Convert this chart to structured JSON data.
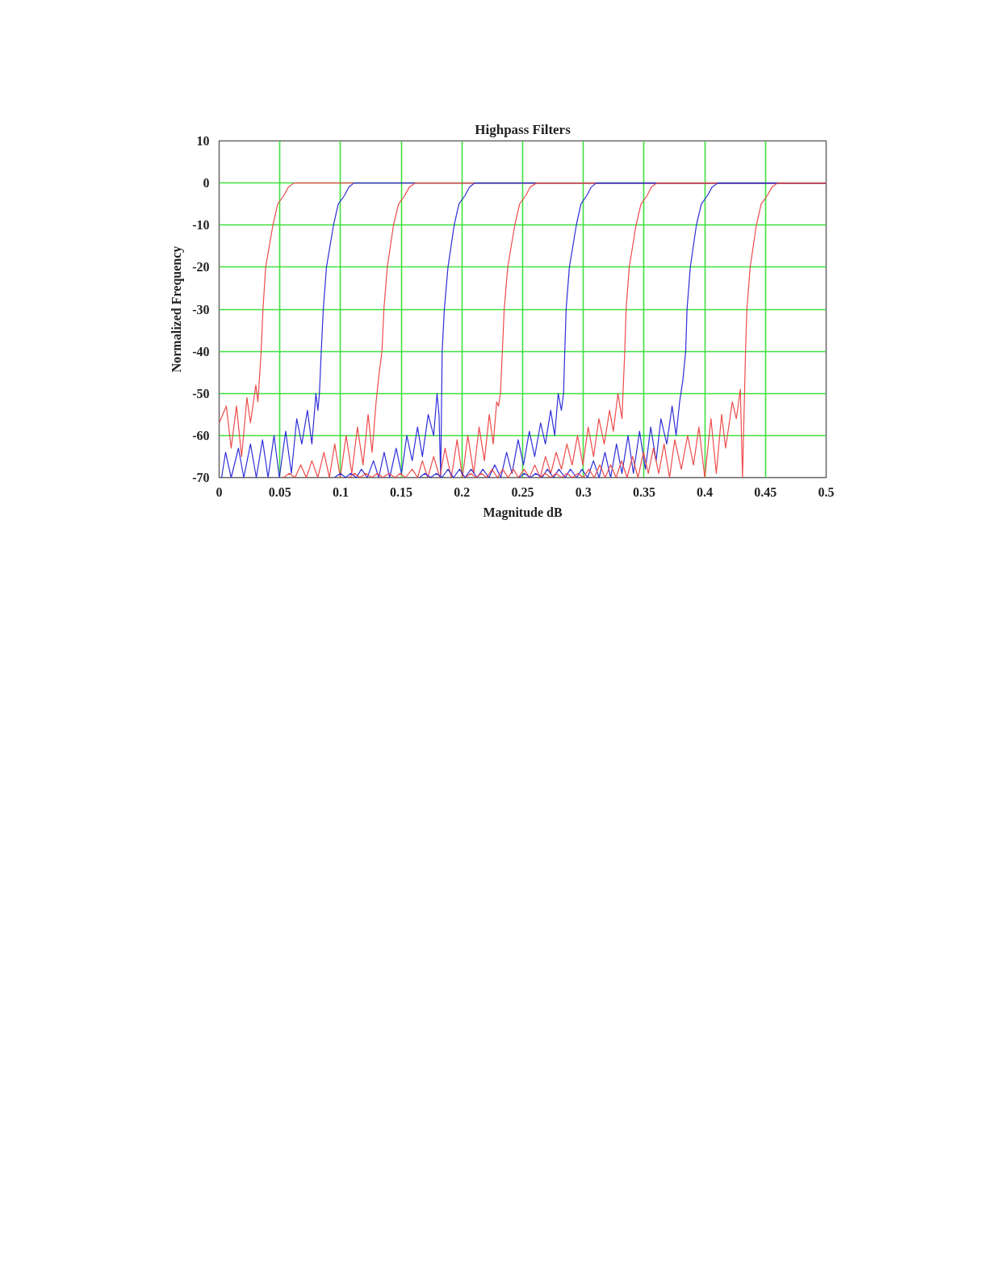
{
  "chart_data": {
    "type": "line",
    "title": "Highpass Filters",
    "xlabel": "Magnitude dB",
    "ylabel": "Normalized Frequency",
    "xlim": [
      0,
      0.5
    ],
    "ylim": [
      -70,
      10
    ],
    "xticks": [
      0,
      0.05,
      0.1,
      0.15,
      0.2,
      0.25,
      0.3,
      0.35,
      0.4,
      0.45,
      0.5
    ],
    "yticks": [
      10,
      0,
      -10,
      -20,
      -30,
      -40,
      -50,
      -60,
      -70
    ],
    "grid": true,
    "series": [
      {
        "color": "#ee4b4b",
        "x": [
          0,
          0.0059,
          0.0099,
          0.0143,
          0.0185,
          0.0229,
          0.0258,
          0.0302,
          0.0319,
          0.0335,
          0.0346,
          0.0361,
          0.0383,
          0.0443,
          0.0482,
          0.0533,
          0.057,
          0.0615,
          0.5
        ],
        "values": [
          -57,
          -53,
          -63,
          -53,
          -65,
          -51,
          -57,
          -48,
          -52,
          -45,
          -40,
          -30,
          -20,
          -10,
          -5,
          -3,
          -1,
          0,
          0
        ]
      },
      {
        "color": "#2e2ed8",
        "x": [
          0.002,
          0.0053,
          0.0099,
          0.0159,
          0.0203,
          0.0258,
          0.0306,
          0.0357,
          0.0403,
          0.0452,
          0.0496,
          0.0548,
          0.0595,
          0.0639,
          0.0681,
          0.0727,
          0.0764,
          0.0797,
          0.0813,
          0.0826,
          0.0841,
          0.0858,
          0.0884,
          0.0942,
          0.0981,
          0.1032,
          0.1068,
          0.111,
          0.5
        ],
        "values": [
          -70,
          -64,
          -70,
          -63,
          -70,
          -62,
          -70,
          -61,
          -70,
          -60,
          -70,
          -59,
          -69,
          -56,
          -62,
          -54,
          -62,
          -50,
          -54,
          -50,
          -40,
          -30,
          -20,
          -10,
          -5,
          -3,
          -1,
          0,
          0
        ]
      },
      {
        "color": "#ee4b4b",
        "x": [
          0.053,
          0.0577,
          0.0625,
          0.0672,
          0.0718,
          0.0764,
          0.0813,
          0.0863,
          0.0908,
          0.0952,
          0.0998,
          0.1046,
          0.1093,
          0.1139,
          0.1185,
          0.1227,
          0.126,
          0.1293,
          0.1315,
          0.1341,
          0.1357,
          0.1385,
          0.1436,
          0.1478,
          0.1528,
          0.1566,
          0.1615,
          0.5
        ],
        "values": [
          -70,
          -69,
          -70,
          -67,
          -70,
          -66,
          -70,
          -64,
          -70,
          -62,
          -70,
          -60,
          -69,
          -58,
          -67,
          -55,
          -64,
          -52,
          -46,
          -40,
          -30,
          -20,
          -10,
          -5,
          -3,
          -1,
          0,
          0
        ]
      },
      {
        "color": "#2e2ed8",
        "x": [
          0.095,
          0.1,
          0.1042,
          0.1084,
          0.113,
          0.1172,
          0.122,
          0.1271,
          0.1315,
          0.1359,
          0.1405,
          0.1458,
          0.1502,
          0.1546,
          0.159,
          0.1634,
          0.1674,
          0.1722,
          0.1767,
          0.1795,
          0.1811,
          0.1825,
          0.1837,
          0.1855,
          0.1885,
          0.1936,
          0.1975,
          0.2025,
          0.2062,
          0.2105,
          0.5
        ],
        "values": [
          -70,
          -69,
          -70,
          -69,
          -70,
          -68,
          -70,
          -66,
          -70,
          -64,
          -70,
          -63,
          -69,
          -60,
          -66,
          -58,
          -65,
          -55,
          -60,
          -50,
          -55,
          -70,
          -40,
          -30,
          -20,
          -10,
          -5,
          -3,
          -1,
          0,
          0
        ]
      },
      {
        "color": "#ee4b4b",
        "x": [
          0.107,
          0.1115,
          0.1162,
          0.1209,
          0.1256,
          0.1303,
          0.135,
          0.1397,
          0.145,
          0.1491,
          0.1535,
          0.159,
          0.1635,
          0.1674,
          0.1718,
          0.1767,
          0.1817,
          0.1861,
          0.1912,
          0.196,
          0.2004,
          0.2048,
          0.2097,
          0.2141,
          0.2185,
          0.2225,
          0.2258,
          0.2286,
          0.2302,
          0.2317,
          0.2333,
          0.2348,
          0.2377,
          0.2435,
          0.2475,
          0.2525,
          0.2562,
          0.2615,
          0.5
        ],
        "values": [
          -70,
          -69,
          -70,
          -69,
          -70,
          -69,
          -70,
          -69,
          -70,
          -69,
          -70,
          -68,
          -70,
          -66,
          -70,
          -65,
          -70,
          -63,
          -70,
          -61,
          -70,
          -60,
          -69,
          -58,
          -66,
          -55,
          -62,
          -52,
          -53,
          -50,
          -40,
          -30,
          -20,
          -10,
          -5,
          -3,
          -1,
          0,
          0
        ]
      },
      {
        "color": "#2e2ed8",
        "x": [
          0.165,
          0.1695,
          0.174,
          0.179,
          0.1835,
          0.1885,
          0.193,
          0.198,
          0.2025,
          0.2075,
          0.2125,
          0.2172,
          0.2222,
          0.227,
          0.232,
          0.2368,
          0.2412,
          0.2463,
          0.2507,
          0.2555,
          0.2599,
          0.2648,
          0.2687,
          0.2731,
          0.2764,
          0.2793,
          0.2819,
          0.2837,
          0.2847,
          0.2858,
          0.2885,
          0.2942,
          0.298,
          0.3028,
          0.3065,
          0.3106,
          0.5
        ],
        "values": [
          -70,
          -69,
          -70,
          -69,
          -70,
          -68,
          -70,
          -68,
          -70,
          -68,
          -70,
          -68,
          -70,
          -67,
          -70,
          -64,
          -69,
          -61,
          -67,
          -59,
          -65,
          -57,
          -62,
          -54,
          -60,
          -50,
          -54,
          -50,
          -40,
          -30,
          -20,
          -10,
          -5,
          -3,
          -1,
          0,
          0
        ]
      },
      {
        "color": "#ee4b4b",
        "x": [
          0.203,
          0.2072,
          0.2116,
          0.216,
          0.2204,
          0.2248,
          0.2292,
          0.2336,
          0.238,
          0.2424,
          0.2465,
          0.2512,
          0.2556,
          0.26,
          0.2644,
          0.2688,
          0.2732,
          0.2776,
          0.282,
          0.2864,
          0.2908,
          0.2952,
          0.2996,
          0.304,
          0.3084,
          0.3128,
          0.3172,
          0.3216,
          0.3247,
          0.3285,
          0.3318,
          0.3341,
          0.3352,
          0.3378,
          0.3434,
          0.3475,
          0.3525,
          0.356,
          0.3606,
          0.5
        ],
        "values": [
          -70,
          -69,
          -70,
          -69,
          -70,
          -68,
          -70,
          -68,
          -70,
          -68,
          -70,
          -68,
          -70,
          -67,
          -70,
          -65,
          -69,
          -64,
          -68,
          -62,
          -67,
          -60,
          -67,
          -58,
          -65,
          -56,
          -62,
          -54,
          -59,
          -50,
          -56,
          -40,
          -30,
          -20,
          -10,
          -5,
          -3,
          -1,
          0,
          0
        ]
      },
      {
        "color": "#2e2ed8",
        "x": [
          0.247,
          0.2513,
          0.2565,
          0.2608,
          0.266,
          0.2703,
          0.2755,
          0.2798,
          0.285,
          0.2893,
          0.2945,
          0.2988,
          0.3035,
          0.3083,
          0.313,
          0.3178,
          0.3225,
          0.3273,
          0.3318,
          0.3368,
          0.3412,
          0.3463,
          0.3511,
          0.3555,
          0.3599,
          0.3639,
          0.3687,
          0.3731,
          0.3764,
          0.3793,
          0.3819,
          0.3843,
          0.3854,
          0.3881,
          0.3931,
          0.3972,
          0.4022,
          0.406,
          0.4108,
          0.5
        ],
        "values": [
          -70,
          -69,
          -70,
          -69,
          -70,
          -68,
          -70,
          -68,
          -70,
          -68,
          -70,
          -68,
          -70,
          -66,
          -70,
          -64,
          -70,
          -62,
          -69,
          -60,
          -69,
          -59,
          -68,
          -58,
          -66,
          -56,
          -62,
          -53,
          -60,
          -52,
          -47,
          -40,
          -30,
          -20,
          -10,
          -5,
          -3,
          -1,
          0,
          0
        ]
      },
      {
        "color": "#ee4b4b",
        "x": [
          0.264,
          0.2685,
          0.273,
          0.2775,
          0.282,
          0.2865,
          0.291,
          0.2955,
          0.3,
          0.3045,
          0.309,
          0.3135,
          0.318,
          0.3225,
          0.327,
          0.3315,
          0.336,
          0.3405,
          0.345,
          0.3495,
          0.3535,
          0.3577,
          0.3621,
          0.3665,
          0.371,
          0.3753,
          0.3807,
          0.3859,
          0.3907,
          0.3952,
          0.4,
          0.4051,
          0.4095,
          0.4139,
          0.4172,
          0.4227,
          0.426,
          0.4293,
          0.4311,
          0.4336,
          0.4347,
          0.4374,
          0.4425,
          0.4465,
          0.4515,
          0.4553,
          0.46,
          0.5
        ],
        "values": [
          -70,
          -69,
          -70,
          -69,
          -70,
          -69,
          -70,
          -69,
          -70,
          -68,
          -70,
          -67,
          -70,
          -67,
          -70,
          -66,
          -70,
          -65,
          -70,
          -64,
          -69,
          -63,
          -69,
          -62,
          -70,
          -61,
          -68,
          -60,
          -67,
          -58,
          -70,
          -56,
          -69,
          -55,
          -63,
          -52,
          -56,
          -49,
          -70,
          -40,
          -30,
          -20,
          -10,
          -5,
          -3,
          -1,
          0,
          0
        ]
      }
    ]
  }
}
